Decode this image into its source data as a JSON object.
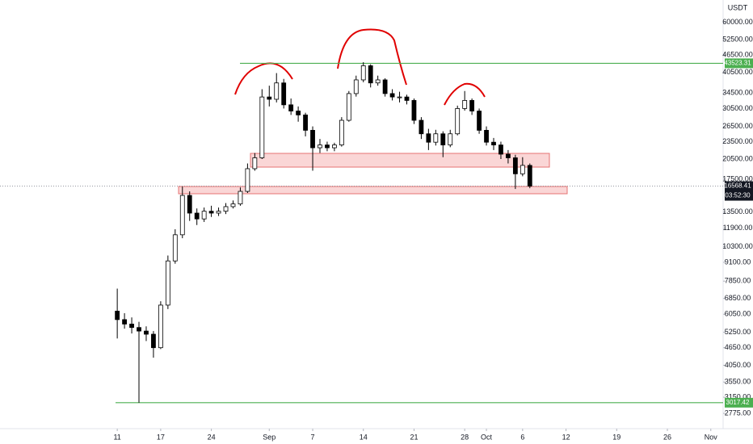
{
  "chart_data": {
    "type": "candlestick",
    "currency": "USDT",
    "log_scale": true,
    "x": [
      11,
      12,
      13,
      14,
      15,
      16,
      17,
      18,
      19,
      20,
      21,
      22,
      23,
      24,
      25,
      26,
      27,
      28,
      29,
      30,
      31,
      32,
      33,
      34,
      35,
      36,
      37,
      38,
      39,
      40,
      41,
      42,
      43,
      44,
      45,
      46,
      47,
      48,
      49,
      50,
      51,
      52,
      53,
      54,
      55,
      56,
      57,
      58,
      59,
      60,
      61,
      62,
      63,
      64,
      65,
      66,
      67,
      68
    ],
    "open": [
      6200,
      5800,
      5600,
      5450,
      5300,
      5170,
      4650,
      6500,
      9200,
      11300,
      15400,
      13400,
      12800,
      13600,
      13400,
      13600,
      14100,
      14400,
      15900,
      19000,
      20700,
      33400,
      32800,
      37300,
      31400,
      29900,
      29000,
      25700,
      22400,
      22900,
      22400,
      22900,
      27800,
      34300,
      38200,
      42700,
      37300,
      38200,
      34300,
      33400,
      33400,
      32500,
      27800,
      25000,
      23400,
      25000,
      22900,
      25000,
      30500,
      32500,
      29900,
      25700,
      23400,
      22900,
      21300,
      20700,
      18250,
      19500
    ],
    "high": [
      7400,
      6100,
      5900,
      5700,
      5500,
      5300,
      6700,
      9600,
      11800,
      16500,
      15900,
      13900,
      14000,
      14200,
      14000,
      14500,
      14800,
      16400,
      19800,
      21500,
      35500,
      36500,
      40300,
      38500,
      33000,
      31000,
      29500,
      26500,
      24000,
      23500,
      23300,
      28500,
      35000,
      39500,
      43900,
      43200,
      39500,
      38700,
      35500,
      34800,
      34000,
      33000,
      28500,
      26000,
      25800,
      25500,
      25800,
      31200,
      35000,
      33000,
      30500,
      26500,
      24200,
      23500,
      22000,
      21200,
      20800,
      19800
    ],
    "low": [
      5000,
      5400,
      5200,
      3017,
      4900,
      4300,
      4600,
      6300,
      9000,
      11000,
      12600,
      12200,
      12500,
      13000,
      13100,
      13300,
      13900,
      14200,
      15700,
      18700,
      20500,
      31000,
      32000,
      30500,
      29000,
      27500,
      24500,
      18700,
      21500,
      21800,
      21800,
      22600,
      27500,
      33500,
      37500,
      36000,
      36500,
      33500,
      32500,
      32000,
      31500,
      27000,
      24000,
      22000,
      22800,
      20800,
      22500,
      24700,
      30000,
      29000,
      25000,
      22800,
      22000,
      20500,
      19800,
      16200,
      17900,
      16300
    ],
    "close": [
      5800,
      5600,
      5450,
      5300,
      5170,
      4650,
      6500,
      9200,
      11300,
      15400,
      13400,
      12800,
      13600,
      13400,
      13600,
      14100,
      14400,
      15900,
      19000,
      20700,
      33400,
      32800,
      37300,
      31400,
      29900,
      29000,
      25700,
      22400,
      22900,
      22400,
      22900,
      27800,
      34300,
      38200,
      42700,
      37300,
      38200,
      34300,
      33400,
      33400,
      32500,
      27800,
      25000,
      23400,
      25000,
      22900,
      25000,
      30500,
      32500,
      29900,
      25700,
      23400,
      22900,
      21300,
      20700,
      18250,
      19500,
      16568
    ],
    "ylim": [
      2460,
      71600
    ],
    "yticks": [
      {
        "value": 60000,
        "label": "60000.00"
      },
      {
        "value": 52500,
        "label": "52500.00"
      },
      {
        "value": 46500,
        "label": "46500.00"
      },
      {
        "value": 40500,
        "label": "40500.00"
      },
      {
        "value": 34500,
        "label": "34500.00"
      },
      {
        "value": 30500,
        "label": "30500.00"
      },
      {
        "value": 26500,
        "label": "26500.00"
      },
      {
        "value": 23500,
        "label": "23500.00"
      },
      {
        "value": 20500,
        "label": "20500.00"
      },
      {
        "value": 17500,
        "label": "17500.00"
      },
      {
        "value": 13500,
        "label": "13500.00"
      },
      {
        "value": 11900,
        "label": "11900.00"
      },
      {
        "value": 10300,
        "label": "10300.00"
      },
      {
        "value": 9100,
        "label": "9100.00"
      },
      {
        "value": 7850,
        "label": "7850.00"
      },
      {
        "value": 6850,
        "label": "6850.00"
      },
      {
        "value": 6050,
        "label": "6050.00"
      },
      {
        "value": 5250,
        "label": "5250.00"
      },
      {
        "value": 4650,
        "label": "4650.00"
      },
      {
        "value": 4050,
        "label": "4050.00"
      },
      {
        "value": 3550,
        "label": "3550.00"
      },
      {
        "value": 3150,
        "label": "3150.00"
      },
      {
        "value": 2775,
        "label": "2775.00"
      }
    ],
    "xlim": [
      -5.2,
      94.7
    ],
    "xticks": [
      {
        "value": 11,
        "label": "11"
      },
      {
        "value": 17,
        "label": "17"
      },
      {
        "value": 24,
        "label": "24"
      },
      {
        "value": 32,
        "label": "Sep"
      },
      {
        "value": 38,
        "label": "7"
      },
      {
        "value": 45,
        "label": "14"
      },
      {
        "value": 52,
        "label": "21"
      },
      {
        "value": 59,
        "label": "28"
      },
      {
        "value": 62,
        "label": "Oct"
      },
      {
        "value": 67,
        "label": "6"
      },
      {
        "value": 73,
        "label": "12"
      },
      {
        "value": 80,
        "label": "19"
      },
      {
        "value": 87,
        "label": "26"
      },
      {
        "value": 93,
        "label": "Nov"
      }
    ],
    "levels": [
      {
        "value": 43523.31,
        "color": "#4caf50"
      },
      {
        "value": 3017.42,
        "color": "#4caf50"
      }
    ],
    "last_price": 16568.41,
    "countdown": "03:52:30",
    "up_color": "#ffffff",
    "down_color": "#000000"
  }
}
